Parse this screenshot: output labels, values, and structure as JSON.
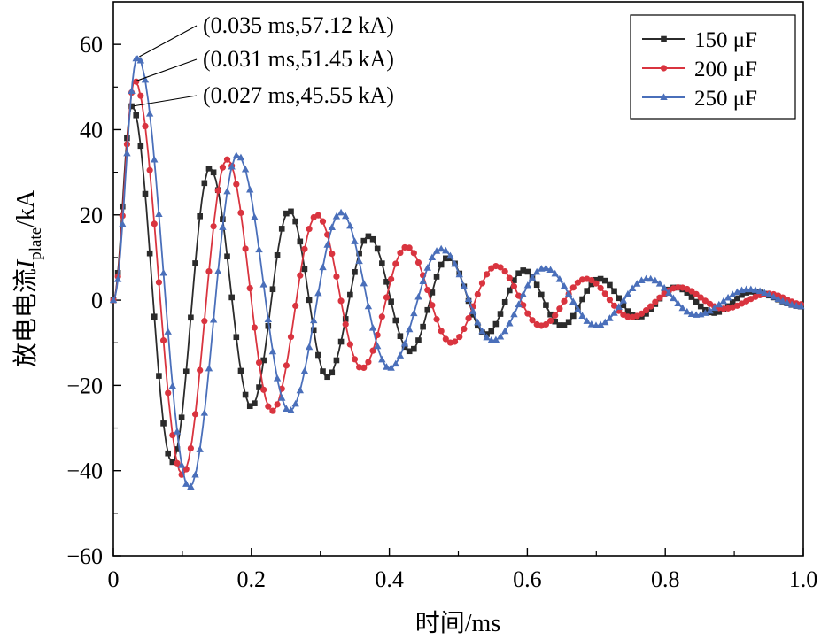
{
  "chart_data": {
    "type": "line",
    "title": "",
    "xlabel": "时间/ms",
    "ylabel": {
      "main": "放电电流",
      "symbol": "I",
      "subscript": "plate",
      "unit": "/kA"
    },
    "xlim": [
      0,
      1.0
    ],
    "ylim": [
      -60,
      70
    ],
    "xticks": [
      0,
      0.2,
      0.4,
      0.6,
      0.8,
      1.0
    ],
    "xtick_labels": [
      "0",
      "0.2",
      "0.4",
      "0.6",
      "0.8",
      "1.0"
    ],
    "yticks": [
      -60,
      -40,
      -20,
      0,
      20,
      40,
      60
    ],
    "ytick_labels": [
      "−60",
      "−40",
      "−20",
      "0",
      "20",
      "40",
      "60"
    ],
    "grid": false,
    "legend_position": "top-right",
    "series": [
      {
        "name": "150 μF",
        "color": "#2b2b2b",
        "marker": "square",
        "x": [
          0,
          0.027,
          0.085,
          0.14,
          0.2,
          0.255,
          0.31,
          0.37,
          0.43,
          0.485,
          0.54,
          0.595,
          0.65,
          0.705,
          0.76,
          0.815,
          0.87,
          0.925,
          1.0
        ],
        "y": [
          0,
          45.55,
          -38,
          31,
          -25,
          21,
          -18,
          15,
          -12,
          10,
          -8,
          7,
          -6,
          5,
          -4,
          3,
          -3,
          2,
          -1.5
        ]
      },
      {
        "name": "200 μF",
        "color": "#d9343f",
        "marker": "circle",
        "x": [
          0,
          0.031,
          0.1,
          0.165,
          0.23,
          0.295,
          0.36,
          0.425,
          0.49,
          0.555,
          0.62,
          0.685,
          0.75,
          0.82,
          0.885,
          0.95,
          1.0
        ],
        "y": [
          0,
          51.45,
          -41,
          33,
          -26,
          20,
          -16,
          12.5,
          -10,
          8,
          -6,
          5,
          -4,
          3,
          -2,
          1.5,
          -1
        ]
      },
      {
        "name": "250 μF",
        "color": "#4a6fba",
        "marker": "triangle",
        "x": [
          0,
          0.035,
          0.11,
          0.18,
          0.255,
          0.33,
          0.4,
          0.475,
          0.55,
          0.625,
          0.7,
          0.775,
          0.845,
          0.92,
          1.0
        ],
        "y": [
          0,
          57.12,
          -44,
          34,
          -26,
          20.5,
          -16,
          12,
          -9.5,
          7.5,
          -6,
          5,
          -3.5,
          2.5,
          -1.5
        ]
      }
    ],
    "annotations": [
      {
        "text": "(0.035 ms,57.12 kA)",
        "x": 0.035,
        "y": 57.12
      },
      {
        "text": "(0.031 ms,51.45 kA)",
        "x": 0.031,
        "y": 51.45
      },
      {
        "text": "(0.027 ms,45.55 kA)",
        "x": 0.027,
        "y": 45.55
      }
    ]
  }
}
